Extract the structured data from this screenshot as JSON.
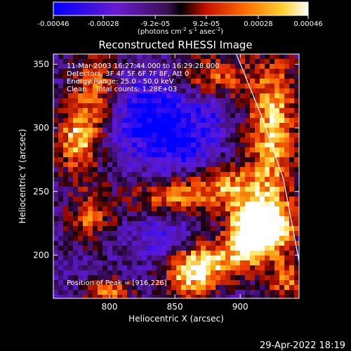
{
  "chart_data": {
    "type": "heatmap",
    "title": "Reconstructed RHESSI Image",
    "xlabel": "Heliocentric X (arcsec)",
    "ylabel": "Heliocentric Y (arcsec)",
    "xlim": [
      757,
      945
    ],
    "ylim": [
      166,
      358
    ],
    "x_ticks": [
      800,
      850,
      900
    ],
    "y_ticks": [
      200,
      250,
      300,
      350
    ],
    "colorbar": {
      "ticks": [
        "-0.00046",
        "-0.00028",
        "-9.2e-05",
        "9.2e-05",
        "0.00028",
        "0.00046"
      ],
      "tick_values": [
        -0.00046,
        -0.00028,
        -9.2e-05,
        9.2e-05,
        0.00028,
        0.00046
      ],
      "range": [
        -0.00046,
        0.00046
      ],
      "units_parts": [
        "(photons cm",
        "-2",
        " s",
        "-1",
        " asec",
        "-2",
        ")"
      ],
      "colormap": "blue-purple-red-yellow-white"
    },
    "annotations": [
      "11-Mar-2003 16:27:44.000 to 16:29:28.000",
      "Detectors: 3F 4F 5F 6F 7F 8F, Att 0",
      "Energy Range: 25.0 - 50.0 keV",
      "Clean    Total counts: 1.28E+03"
    ],
    "peak_label": "Position of Peak = [916,226]",
    "peak": [
      916,
      226
    ],
    "limb": [
      [
        897,
        358
      ],
      [
        916,
        310
      ],
      [
        933,
        260
      ],
      [
        945,
        195
      ]
    ],
    "hotspots": [
      {
        "x": 922,
        "y": 222,
        "sx": 14,
        "sy": 14,
        "amp": 1.0
      },
      {
        "x": 906,
        "y": 215,
        "sx": 12,
        "sy": 18,
        "amp": 0.85
      },
      {
        "x": 877,
        "y": 195,
        "sx": 16,
        "sy": 12,
        "amp": 0.65
      },
      {
        "x": 860,
        "y": 182,
        "sx": 14,
        "sy": 14,
        "amp": 0.6
      },
      {
        "x": 925,
        "y": 300,
        "sx": 14,
        "sy": 40,
        "amp": 0.75
      },
      {
        "x": 890,
        "y": 255,
        "sx": 22,
        "sy": 12,
        "amp": 0.55
      },
      {
        "x": 845,
        "y": 245,
        "sx": 25,
        "sy": 10,
        "amp": 0.5
      },
      {
        "x": 775,
        "y": 290,
        "sx": 12,
        "sy": 18,
        "amp": 0.7
      },
      {
        "x": 790,
        "y": 330,
        "sx": 14,
        "sy": 25,
        "amp": 0.55
      },
      {
        "x": 880,
        "y": 340,
        "sx": 20,
        "sy": 14,
        "amp": 0.5
      },
      {
        "x": 785,
        "y": 230,
        "sx": 12,
        "sy": 15,
        "amp": 0.5
      },
      {
        "x": 800,
        "y": 170,
        "sx": 12,
        "sy": 8,
        "amp": 0.55
      },
      {
        "x": 935,
        "y": 180,
        "sx": 10,
        "sy": 12,
        "amp": 0.55
      }
    ],
    "coldspots": [
      {
        "x": 830,
        "y": 310,
        "sx": 25,
        "sy": 22,
        "amp": 0.75
      },
      {
        "x": 855,
        "y": 285,
        "sx": 18,
        "sy": 15,
        "amp": 0.5
      },
      {
        "x": 840,
        "y": 215,
        "sx": 15,
        "sy": 12,
        "amp": 0.45
      },
      {
        "x": 878,
        "y": 315,
        "sx": 10,
        "sy": 10,
        "amp": 0.4
      }
    ]
  },
  "footer": {
    "timestamp": "29-Apr-2022 18:19"
  }
}
